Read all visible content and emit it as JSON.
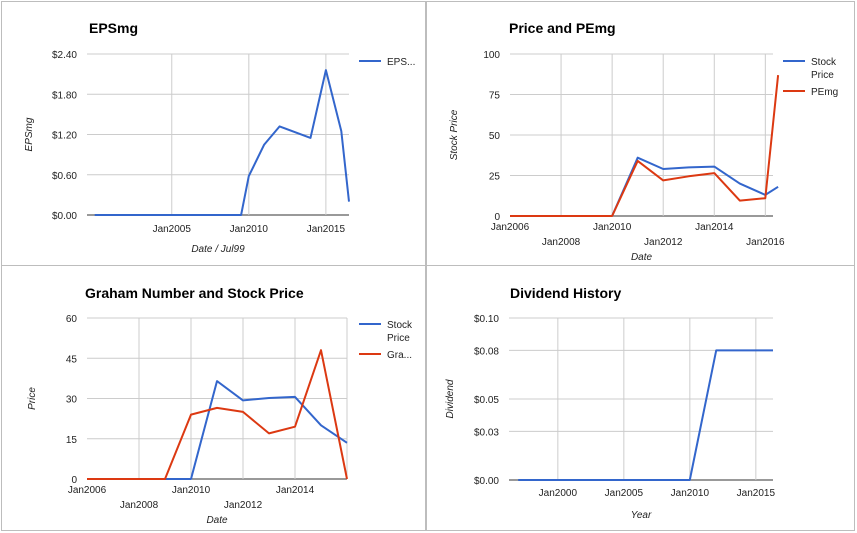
{
  "chart_data": [
    {
      "type": "line",
      "title": "EPSmg",
      "xlabel": "Date / Jul99",
      "ylabel": "EPSmg",
      "x_ticks": [
        "Jan2005",
        "Jan2010",
        "Jan2015"
      ],
      "y_ticks": [
        "$0.00",
        "$0.60",
        "$1.20",
        "$1.80",
        "$2.40"
      ],
      "ylim": [
        0,
        2.4
      ],
      "xlim": [
        1999.5,
        2016.5
      ],
      "legend": "right",
      "series": [
        {
          "name": "EPS...",
          "color": "#3366cc",
          "x": [
            2000,
            2009.5,
            2010,
            2011,
            2012,
            2014,
            2015,
            2016,
            2016.5
          ],
          "values": [
            0,
            0,
            0.58,
            1.05,
            1.32,
            1.15,
            2.16,
            1.25,
            0.2
          ]
        }
      ]
    },
    {
      "type": "line",
      "title": "Price and PEmg",
      "xlabel": "Date",
      "ylabel": "Stock Price",
      "x_ticks": [
        "Jan2006",
        "Jan2008",
        "Jan2010",
        "Jan2012",
        "Jan2014",
        "Jan2016"
      ],
      "y_ticks": [
        "0",
        "25",
        "50",
        "75",
        "100"
      ],
      "ylim": [
        0,
        100
      ],
      "xlim": [
        2006,
        2016.3
      ],
      "legend": "right",
      "series": [
        {
          "name": "Stock Price",
          "color": "#3366cc",
          "x": [
            2006,
            2010,
            2011,
            2012,
            2013,
            2014,
            2015,
            2016,
            2016.5
          ],
          "values": [
            0,
            0,
            36,
            29,
            30,
            30.5,
            20,
            13,
            18
          ]
        },
        {
          "name": "PEmg",
          "color": "#dc3912",
          "x": [
            2006,
            2010,
            2011,
            2012,
            2013,
            2014,
            2015,
            2016,
            2016.5
          ],
          "values": [
            0,
            0,
            34,
            22,
            24.5,
            26.5,
            9.5,
            11,
            87
          ]
        }
      ]
    },
    {
      "type": "line",
      "title": "Graham Number and Stock Price",
      "xlabel": "Date",
      "ylabel": "Price",
      "x_ticks": [
        "Jan2006",
        "Jan2008",
        "Jan2010",
        "Jan2012",
        "Jan2014"
      ],
      "y_ticks": [
        "0",
        "15",
        "30",
        "45",
        "60"
      ],
      "ylim": [
        0,
        60
      ],
      "xlim": [
        2006,
        2016
      ],
      "legend": "right",
      "series": [
        {
          "name": "Stock Price",
          "color": "#3366cc",
          "x": [
            2006,
            2010,
            2011,
            2012,
            2013,
            2014,
            2015,
            2016
          ],
          "values": [
            0,
            0,
            36.5,
            29.3,
            30.2,
            30.6,
            20,
            13.5
          ]
        },
        {
          "name": "Gra...",
          "color": "#dc3912",
          "x": [
            2006,
            2009,
            2010,
            2011,
            2012,
            2013,
            2014,
            2015,
            2016
          ],
          "values": [
            0,
            0,
            24,
            26.5,
            25,
            17,
            19.5,
            48,
            0
          ]
        }
      ]
    },
    {
      "type": "line",
      "title": "Dividend History",
      "xlabel": "Year",
      "ylabel": "Dividend",
      "x_ticks": [
        "Jan2000",
        "Jan2005",
        "Jan2010",
        "Jan2015"
      ],
      "y_ticks": [
        "$0.00",
        "$0.03",
        "$0.05",
        "$0.08",
        "$0.10"
      ],
      "ylim": [
        0,
        0.1
      ],
      "xlim": [
        1996.3,
        2016.3
      ],
      "legend": "none",
      "series": [
        {
          "name": "",
          "color": "#3366cc",
          "x": [
            1997,
            2010,
            2012,
            2016.3
          ],
          "values": [
            0,
            0,
            0.08,
            0.08
          ]
        }
      ]
    }
  ]
}
